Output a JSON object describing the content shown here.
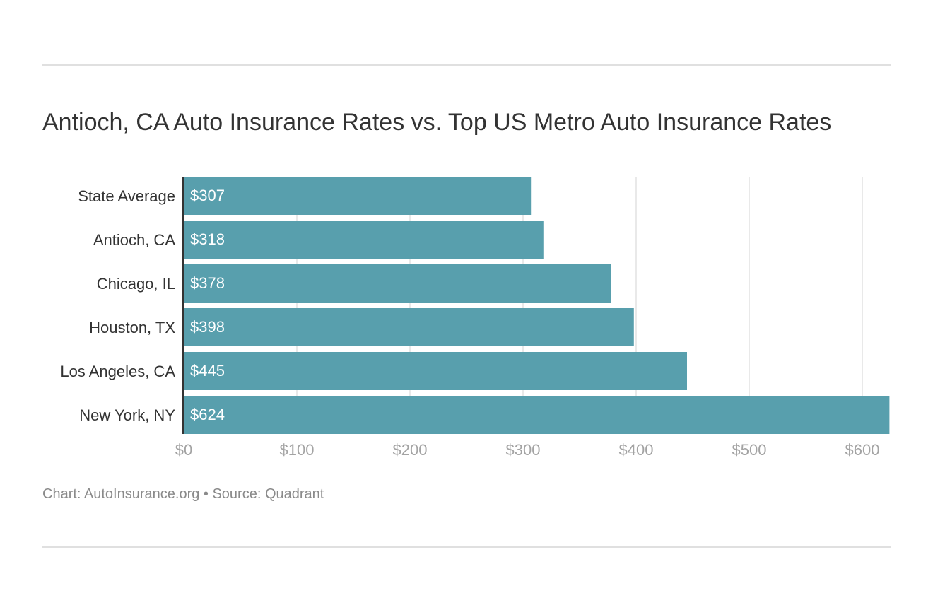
{
  "chart_data": {
    "type": "bar",
    "orientation": "horizontal",
    "title": "Antioch, CA Auto Insurance Rates vs. Top US Metro Auto Insurance Rates",
    "categories": [
      "State Average",
      "Antioch, CA",
      "Chicago, IL",
      "Houston, TX",
      "Los Angeles, CA",
      "New York, NY"
    ],
    "values": [
      307,
      318,
      378,
      398,
      445,
      624
    ],
    "value_labels": [
      "$307",
      "$318",
      "$378",
      "$398",
      "$445",
      "$624"
    ],
    "xticks": [
      0,
      100,
      200,
      300,
      400,
      500,
      600
    ],
    "xtick_labels": [
      "$0",
      "$100",
      "$200",
      "$300",
      "$400",
      "$500",
      "$600"
    ],
    "xlim": [
      0,
      624
    ],
    "grid": true,
    "bar_color": "#589fad"
  },
  "footer": {
    "credit": "Chart: AutoInsurance.org • Source: Quadrant"
  }
}
